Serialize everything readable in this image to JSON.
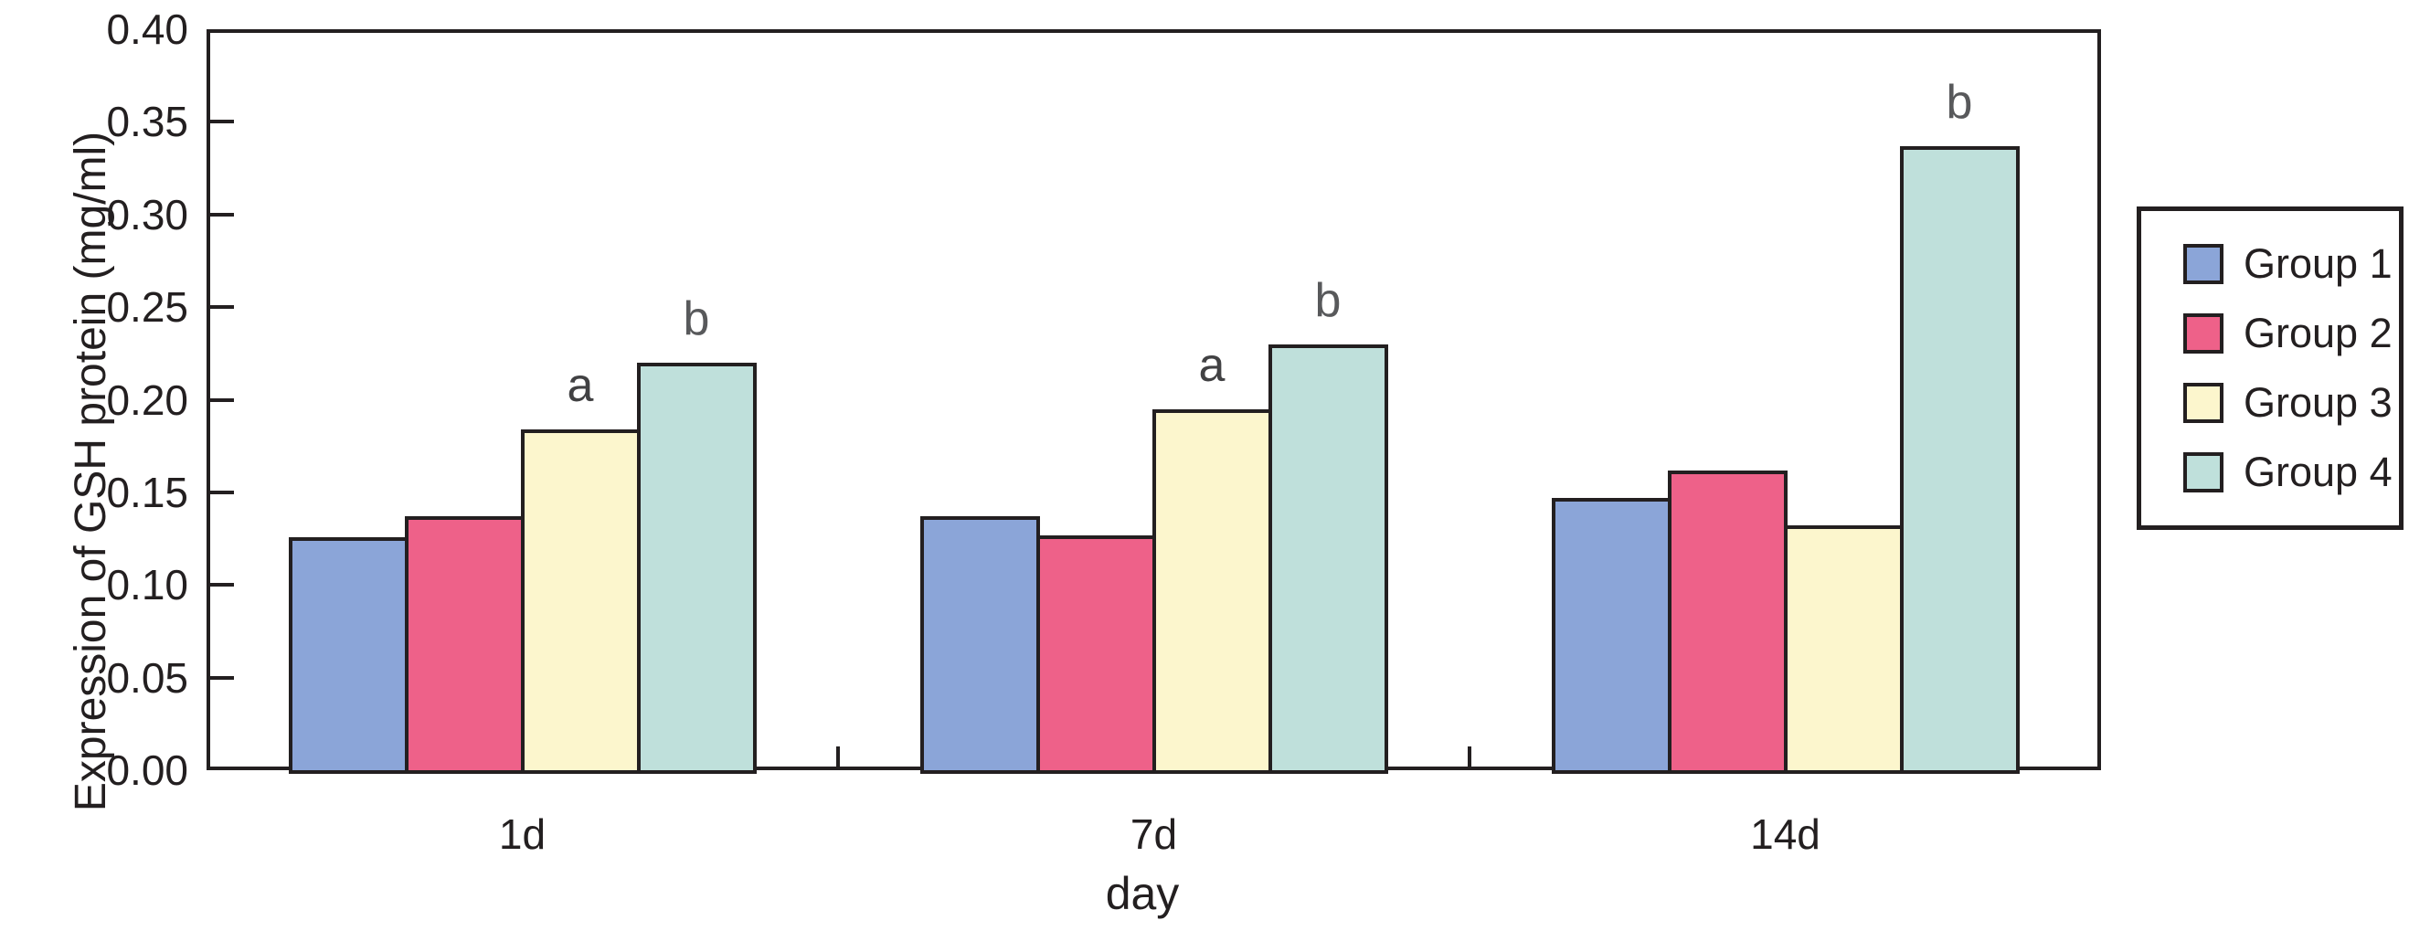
{
  "figure": {
    "background": "#FFFFFF",
    "ink_color": "#231F20"
  },
  "y_axis": {
    "title": "Expression of GSH protein (mg/ml)",
    "tick_labels": [
      "0.00",
      "0.05",
      "0.10",
      "0.15",
      "0.20",
      "0.25",
      "0.30",
      "0.35",
      "0.40"
    ]
  },
  "x_axis": {
    "title": "day",
    "categories": [
      "1d",
      "7d",
      "14d"
    ]
  },
  "legend": {
    "entries": [
      {
        "label": "Group 1",
        "color": "#8BA5D8"
      },
      {
        "label": "Group 2",
        "color": "#EE6189"
      },
      {
        "label": "Group 3",
        "color": "#FCF6CD"
      },
      {
        "label": "Group 4",
        "color": "#BFE0DB"
      }
    ]
  },
  "chart_data": {
    "type": "bar",
    "title": "",
    "xlabel": "day",
    "ylabel": "Expression of GSH protein (mg/ml)",
    "ylim": [
      0,
      0.4
    ],
    "ytick_step": 0.05,
    "grid": false,
    "legend_position": "outside-right",
    "categories": [
      "1d",
      "7d",
      "14d"
    ],
    "series": [
      {
        "name": "Group 1",
        "color": "#8BA5D8",
        "values": [
          0.126,
          0.137,
          0.147
        ]
      },
      {
        "name": "Group 2",
        "color": "#EE6189",
        "values": [
          0.137,
          0.127,
          0.162
        ]
      },
      {
        "name": "Group 3",
        "color": "#FCF6CD",
        "values": [
          0.184,
          0.195,
          0.132
        ]
      },
      {
        "name": "Group 4",
        "color": "#BFE0DB",
        "values": [
          0.22,
          0.23,
          0.337
        ]
      }
    ],
    "annotations": [
      {
        "category": "1d",
        "series": "Group 3",
        "text": "a",
        "color": "#414143"
      },
      {
        "category": "1d",
        "series": "Group 4",
        "text": "b",
        "color": "#58595B"
      },
      {
        "category": "7d",
        "series": "Group 3",
        "text": "a",
        "color": "#414143"
      },
      {
        "category": "7d",
        "series": "Group 4",
        "text": "b",
        "color": "#58595B"
      },
      {
        "category": "14d",
        "series": "Group 4",
        "text": "b",
        "color": "#58595B"
      }
    ]
  }
}
